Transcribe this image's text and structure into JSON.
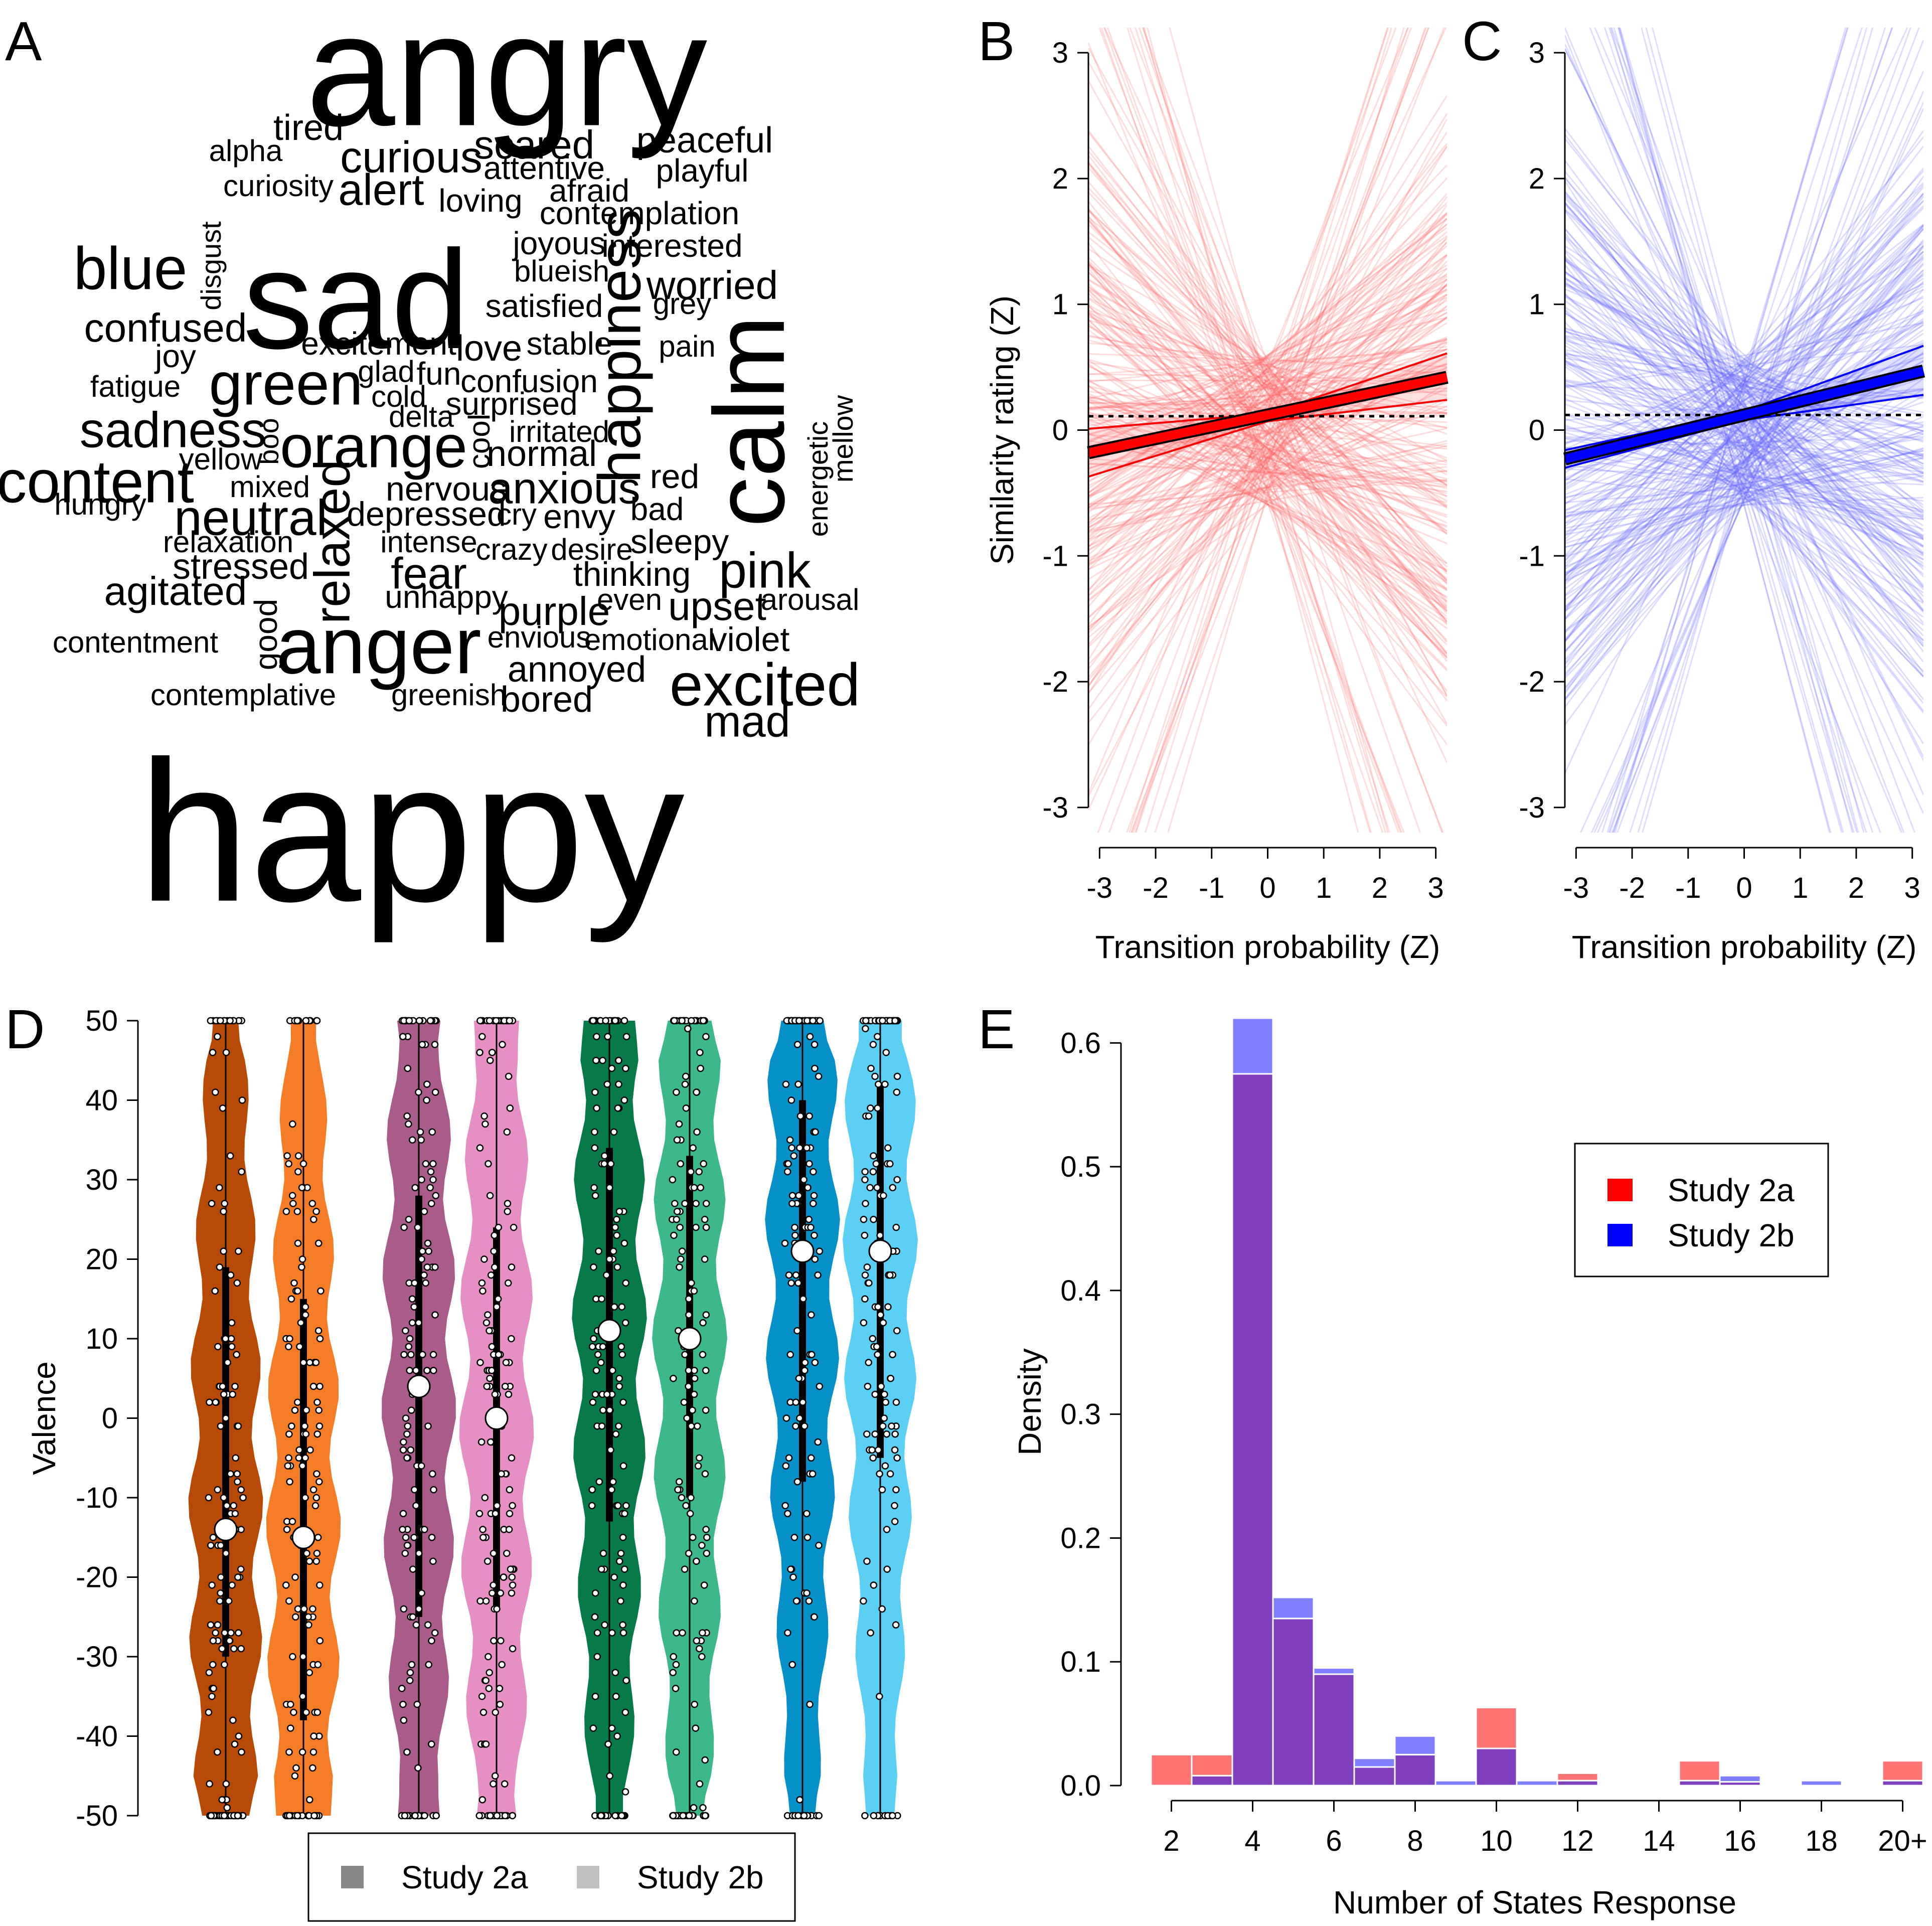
{
  "panels": {
    "A": {
      "label": "A"
    },
    "B": {
      "label": "B"
    },
    "C": {
      "label": "C"
    },
    "D": {
      "label": "D"
    },
    "E": {
      "label": "E"
    }
  },
  "colors": {
    "study2a_red": "#ff0000",
    "study2b_blue": "#0000ff",
    "purple_overlap": "#7f3fbf",
    "orange_dark": "#b84a08",
    "orange_light": "#f57c26",
    "pink_dark": "#a95c8a",
    "pink_light": "#e68fc4",
    "green_dark": "#087a4a",
    "green_light": "#3cb88a",
    "blue_dark": "#0591c8",
    "blue_light": "#5ccff5"
  },
  "wordcloud": [
    {
      "text": "angry",
      "size": 8,
      "x": 1010,
      "y": 165,
      "rot": 0
    },
    {
      "text": "happy",
      "size": 10,
      "x": 820,
      "y": 1690,
      "rot": 0
    },
    {
      "text": "sad",
      "size": 7,
      "x": 710,
      "y": 620,
      "rot": 0
    },
    {
      "text": "calm",
      "size": 5,
      "x": 1510,
      "y": 840,
      "rot": -90
    },
    {
      "text": "anger",
      "size": 4,
      "x": 755,
      "y": 1300,
      "rot": 0
    },
    {
      "text": "excited",
      "size": 3,
      "x": 1525,
      "y": 1375,
      "rot": 0
    },
    {
      "text": "orange",
      "size": 3,
      "x": 745,
      "y": 900,
      "rot": 0
    },
    {
      "text": "green",
      "size": 3,
      "x": 570,
      "y": 775,
      "rot": 0
    },
    {
      "text": "blue",
      "size": 3,
      "x": 260,
      "y": 545,
      "rot": 0
    },
    {
      "text": "content",
      "size": 3,
      "x": 190,
      "y": 970,
      "rot": 0
    },
    {
      "text": "happiness",
      "size": 3,
      "x": 1245,
      "y": 690,
      "rot": -90
    },
    {
      "text": "neutral",
      "size": 2.5,
      "x": 500,
      "y": 1040,
      "rot": 0
    },
    {
      "text": "sadness",
      "size": 2.5,
      "x": 345,
      "y": 865,
      "rot": 0
    },
    {
      "text": "relaxed",
      "size": 2.5,
      "x": 670,
      "y": 1080,
      "rot": -90
    },
    {
      "text": "pink",
      "size": 2.5,
      "x": 1525,
      "y": 1145,
      "rot": 0
    },
    {
      "text": "curious",
      "size": 2.2,
      "x": 820,
      "y": 320,
      "rot": 0
    },
    {
      "text": "alert",
      "size": 2.2,
      "x": 760,
      "y": 385,
      "rot": 0
    },
    {
      "text": "scared",
      "size": 2,
      "x": 1065,
      "y": 295,
      "rot": 0
    },
    {
      "text": "worried",
      "size": 2,
      "x": 1420,
      "y": 575,
      "rot": 0
    },
    {
      "text": "fear",
      "size": 2.2,
      "x": 855,
      "y": 1150,
      "rot": 0
    },
    {
      "text": "anxious",
      "size": 2.2,
      "x": 1125,
      "y": 980,
      "rot": 0
    },
    {
      "text": "upset",
      "size": 2,
      "x": 1430,
      "y": 1215,
      "rot": 0
    },
    {
      "text": "mad",
      "size": 2.2,
      "x": 1490,
      "y": 1445,
      "rot": 0
    },
    {
      "text": "purple",
      "size": 2,
      "x": 1105,
      "y": 1225,
      "rot": 0
    },
    {
      "text": "agitated",
      "size": 2,
      "x": 350,
      "y": 1185,
      "rot": 0
    },
    {
      "text": "confused",
      "size": 2,
      "x": 330,
      "y": 660,
      "rot": 0
    },
    {
      "text": "peaceful",
      "size": 1.8,
      "x": 1405,
      "y": 285,
      "rot": 0
    },
    {
      "text": "tired",
      "size": 1.8,
      "x": 615,
      "y": 260,
      "rot": 0
    },
    {
      "text": "love",
      "size": 1.8,
      "x": 975,
      "y": 700,
      "rot": 0
    },
    {
      "text": "stressed",
      "size": 1.8,
      "x": 480,
      "y": 1135,
      "rot": 0
    },
    {
      "text": "bored",
      "size": 1.8,
      "x": 1090,
      "y": 1400,
      "rot": 0
    },
    {
      "text": "annoyed",
      "size": 1.8,
      "x": 1150,
      "y": 1340,
      "rot": 0
    },
    {
      "text": "normal",
      "size": 1.8,
      "x": 1080,
      "y": 910,
      "rot": 0
    },
    {
      "text": "depressed",
      "size": 1.7,
      "x": 850,
      "y": 1030,
      "rot": 0
    },
    {
      "text": "thinking",
      "size": 1.7,
      "x": 1260,
      "y": 1150,
      "rot": 0
    },
    {
      "text": "sleepy",
      "size": 1.7,
      "x": 1355,
      "y": 1085,
      "rot": 0
    },
    {
      "text": "red",
      "size": 1.7,
      "x": 1345,
      "y": 955,
      "rot": 0
    },
    {
      "text": "violet",
      "size": 1.7,
      "x": 1495,
      "y": 1280,
      "rot": 0
    },
    {
      "text": "envy",
      "size": 1.7,
      "x": 1155,
      "y": 1035,
      "rot": 0
    },
    {
      "text": "excitement",
      "size": 1.6,
      "x": 755,
      "y": 690,
      "rot": 0
    },
    {
      "text": "confusion",
      "size": 1.6,
      "x": 1055,
      "y": 765,
      "rot": 0
    },
    {
      "text": "surprised",
      "size": 1.6,
      "x": 1020,
      "y": 810,
      "rot": 0
    },
    {
      "text": "satisfied",
      "size": 1.6,
      "x": 1085,
      "y": 615,
      "rot": 0
    },
    {
      "text": "stable",
      "size": 1.6,
      "x": 1135,
      "y": 690,
      "rot": 0
    },
    {
      "text": "interested",
      "size": 1.6,
      "x": 1340,
      "y": 495,
      "rot": 0
    },
    {
      "text": "joyous",
      "size": 1.6,
      "x": 1115,
      "y": 490,
      "rot": 0
    },
    {
      "text": "contemplation",
      "size": 1.6,
      "x": 1275,
      "y": 430,
      "rot": 0
    },
    {
      "text": "afraid",
      "size": 1.6,
      "x": 1175,
      "y": 385,
      "rot": 0
    },
    {
      "text": "attentive",
      "size": 1.6,
      "x": 1085,
      "y": 340,
      "rot": 0
    },
    {
      "text": "playful",
      "size": 1.6,
      "x": 1400,
      "y": 345,
      "rot": 0
    },
    {
      "text": "loving",
      "size": 1.6,
      "x": 958,
      "y": 405,
      "rot": 0
    },
    {
      "text": "alpha",
      "size": 1.5,
      "x": 490,
      "y": 305,
      "rot": 0
    },
    {
      "text": "curiosity",
      "size": 1.5,
      "x": 555,
      "y": 375,
      "rot": 0
    },
    {
      "text": "blueish",
      "size": 1.5,
      "x": 1120,
      "y": 545,
      "rot": 0
    },
    {
      "text": "grey",
      "size": 1.5,
      "x": 1360,
      "y": 610,
      "rot": 0
    },
    {
      "text": "pain",
      "size": 1.5,
      "x": 1370,
      "y": 695,
      "rot": 0
    },
    {
      "text": "joy",
      "size": 1.6,
      "x": 350,
      "y": 715,
      "rot": 0
    },
    {
      "text": "fatigue",
      "size": 1.5,
      "x": 270,
      "y": 775,
      "rot": 0
    },
    {
      "text": "glad",
      "size": 1.5,
      "x": 770,
      "y": 745,
      "rot": 0
    },
    {
      "text": "fun",
      "size": 1.6,
      "x": 875,
      "y": 750,
      "rot": 0
    },
    {
      "text": "cold",
      "size": 1.5,
      "x": 795,
      "y": 795,
      "rot": 0
    },
    {
      "text": "delta",
      "size": 1.5,
      "x": 840,
      "y": 835,
      "rot": 0
    },
    {
      "text": "irritated",
      "size": 1.5,
      "x": 1115,
      "y": 865,
      "rot": 0
    },
    {
      "text": "yellow",
      "size": 1.5,
      "x": 440,
      "y": 920,
      "rot": 0
    },
    {
      "text": "mixed",
      "size": 1.5,
      "x": 538,
      "y": 975,
      "rot": 0
    },
    {
      "text": "hungry",
      "size": 1.5,
      "x": 200,
      "y": 1010,
      "rot": 0
    },
    {
      "text": "nervous",
      "size": 1.7,
      "x": 890,
      "y": 980,
      "rot": 0
    },
    {
      "text": "cry",
      "size": 1.5,
      "x": 1030,
      "y": 1030,
      "rot": 0
    },
    {
      "text": "bad",
      "size": 1.6,
      "x": 1310,
      "y": 1020,
      "rot": 0
    },
    {
      "text": "relaxation",
      "size": 1.5,
      "x": 455,
      "y": 1085,
      "rot": 0
    },
    {
      "text": "intense",
      "size": 1.5,
      "x": 855,
      "y": 1085,
      "rot": 0
    },
    {
      "text": "crazy",
      "size": 1.5,
      "x": 1020,
      "y": 1100,
      "rot": 0
    },
    {
      "text": "desire",
      "size": 1.5,
      "x": 1180,
      "y": 1100,
      "rot": 0
    },
    {
      "text": "unhappy",
      "size": 1.6,
      "x": 890,
      "y": 1195,
      "rot": 0
    },
    {
      "text": "even",
      "size": 1.5,
      "x": 1255,
      "y": 1200,
      "rot": 0
    },
    {
      "text": "arousal",
      "size": 1.5,
      "x": 1615,
      "y": 1200,
      "rot": 0
    },
    {
      "text": "contentment",
      "size": 1.5,
      "x": 270,
      "y": 1285,
      "rot": 0
    },
    {
      "text": "envious",
      "size": 1.5,
      "x": 1075,
      "y": 1275,
      "rot": 0
    },
    {
      "text": "emotional",
      "size": 1.5,
      "x": 1295,
      "y": 1280,
      "rot": 0
    },
    {
      "text": "contemplative",
      "size": 1.5,
      "x": 485,
      "y": 1390,
      "rot": 0
    },
    {
      "text": "greenish",
      "size": 1.5,
      "x": 895,
      "y": 1390,
      "rot": 0
    },
    {
      "text": "disgust",
      "size": 1.4,
      "x": 425,
      "y": 530,
      "rot": -90
    },
    {
      "text": "boo",
      "size": 1.4,
      "x": 540,
      "y": 880,
      "rot": -90
    },
    {
      "text": "cool",
      "size": 1.5,
      "x": 960,
      "y": 880,
      "rot": -90
    },
    {
      "text": "good",
      "size": 1.6,
      "x": 535,
      "y": 1265,
      "rot": -90
    },
    {
      "text": "energetic",
      "size": 1.4,
      "x": 1635,
      "y": 955,
      "rot": -90
    },
    {
      "text": "mellow",
      "size": 1.4,
      "x": 1685,
      "y": 875,
      "rot": -90
    }
  ],
  "chart_data": [
    {
      "panel": "B",
      "type": "line",
      "xlabel": "Transition probability (Z)",
      "ylabel": "Similarity rating (Z)",
      "xlim": [
        -3.2,
        3.2
      ],
      "ylim": [
        -3.2,
        3.2
      ],
      "xticks": [
        "-3",
        "-2",
        "-1",
        "0",
        "1",
        "2",
        "3"
      ],
      "yticks": [
        "-3",
        "-2",
        "-1",
        "0",
        "1",
        "2",
        "3"
      ],
      "series": [
        {
          "role": "fit",
          "x": [
            -3.2,
            3.2
          ],
          "y": [
            -0.18,
            0.42
          ],
          "color": "#ff0000"
        },
        {
          "role": "ci_lower",
          "x": [
            -3.2,
            0.0,
            3.2
          ],
          "y": [
            -0.37,
            0.07,
            0.24
          ]
        },
        {
          "role": "ci_upper",
          "x": [
            -3.2,
            0.0,
            3.2
          ],
          "y": [
            0.01,
            0.13,
            0.61
          ]
        },
        {
          "role": "reference",
          "x": [
            -3.2,
            3.2
          ],
          "y": [
            0.11,
            0.11
          ],
          "style": "dashed"
        }
      ]
    },
    {
      "panel": "C",
      "type": "line",
      "xlabel": "Transition probability (Z)",
      "ylabel": "",
      "xlim": [
        -3.2,
        3.2
      ],
      "ylim": [
        -3.2,
        3.2
      ],
      "xticks": [
        "-3",
        "-2",
        "-1",
        "0",
        "1",
        "2",
        "3"
      ],
      "yticks": [
        "-3",
        "-2",
        "-1",
        "0",
        "1",
        "2",
        "3"
      ],
      "series": [
        {
          "role": "fit",
          "x": [
            -3.2,
            3.2
          ],
          "y": [
            -0.23,
            0.47
          ],
          "color": "#0000ff"
        },
        {
          "role": "ci_lower",
          "x": [
            -3.2,
            0.0,
            3.2
          ],
          "y": [
            -0.3,
            0.08,
            0.28
          ]
        },
        {
          "role": "ci_upper",
          "x": [
            -3.2,
            0.0,
            3.2
          ],
          "y": [
            -0.16,
            0.15,
            0.67
          ]
        },
        {
          "role": "reference",
          "x": [
            -3.2,
            3.2
          ],
          "y": [
            0.12,
            0.12
          ],
          "style": "dashed"
        }
      ]
    },
    {
      "panel": "D",
      "type": "violin",
      "ylabel": "Valence",
      "ylim": [
        -50,
        50
      ],
      "yticks": [
        "-50",
        "-40",
        "-30",
        "-20",
        "-10",
        "0",
        "10",
        "20",
        "30",
        "40",
        "50"
      ],
      "legend": [
        "Study 2a",
        "Study 2b"
      ],
      "series": [
        {
          "group": 1,
          "study": "Study 2a",
          "median": -14,
          "q1": -30,
          "q3": 19,
          "color": "#b84a08"
        },
        {
          "group": 1,
          "study": "Study 2b",
          "median": -15,
          "q1": -38,
          "q3": 15,
          "color": "#f57c26"
        },
        {
          "group": 2,
          "study": "Study 2a",
          "median": 4,
          "q1": -25,
          "q3": 28,
          "color": "#a95c8a"
        },
        {
          "group": 2,
          "study": "Study 2b",
          "median": 0,
          "q1": -24,
          "q3": 24,
          "color": "#e68fc4"
        },
        {
          "group": 3,
          "study": "Study 2a",
          "median": 11,
          "q1": -13,
          "q3": 34,
          "color": "#087a4a"
        },
        {
          "group": 3,
          "study": "Study 2b",
          "median": 10,
          "q1": -10,
          "q3": 33,
          "color": "#3cb88a"
        },
        {
          "group": 4,
          "study": "Study 2a",
          "median": 21,
          "q1": -8,
          "q3": 40,
          "color": "#0591c8"
        },
        {
          "group": 4,
          "study": "Study 2b",
          "median": 21,
          "q1": -5,
          "q3": 42,
          "color": "#5ccff5"
        }
      ]
    },
    {
      "panel": "E",
      "type": "bar",
      "xlabel": "Number of States Response",
      "ylabel": "Density",
      "ylim": [
        0,
        0.62
      ],
      "xticks": [
        "2",
        "4",
        "6",
        "8",
        "10",
        "12",
        "14",
        "16",
        "18",
        "20+"
      ],
      "yticks": [
        "0.0",
        "0.1",
        "0.2",
        "0.3",
        "0.4",
        "0.5",
        "0.6"
      ],
      "legend": [
        "Study 2a",
        "Study 2b"
      ],
      "bins": [
        2,
        3,
        4,
        5,
        6,
        7,
        8,
        9,
        10,
        11,
        12,
        13,
        14,
        15,
        16,
        17,
        18,
        19,
        20
      ],
      "series": [
        {
          "name": "Study 2a",
          "values": [
            0.025,
            0.025,
            0.575,
            0.135,
            0.09,
            0.015,
            0.025,
            0.0,
            0.063,
            0.0,
            0.01,
            0.0,
            0.0,
            0.02,
            0.003,
            0.0,
            0.0,
            0.0,
            0.02
          ]
        },
        {
          "name": "Study 2b",
          "values": [
            0.0,
            0.008,
            0.62,
            0.152,
            0.095,
            0.022,
            0.04,
            0.004,
            0.03,
            0.004,
            0.004,
            0.0,
            0.0,
            0.004,
            0.008,
            0.0,
            0.004,
            0.0,
            0.004
          ]
        }
      ]
    }
  ]
}
